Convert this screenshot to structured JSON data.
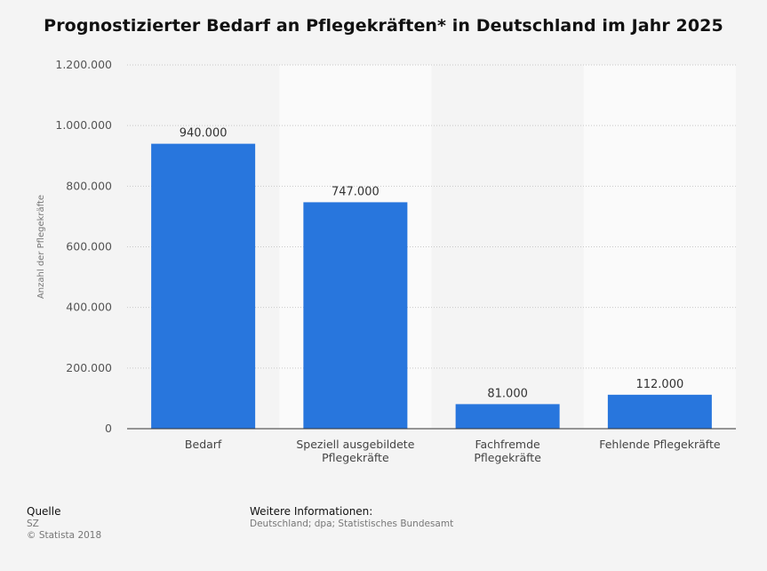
{
  "chart_data": {
    "type": "bar",
    "title": "Prognostizierter Bedarf an Pflegekräften* in Deutschland im Jahr 2025",
    "ylabel": "Anzahl der Pflegekräfte",
    "xlabel": "",
    "categories": [
      [
        "Bedarf"
      ],
      [
        "Speziell ausgebildete",
        "Pflegekräfte"
      ],
      [
        "Fachfremde",
        "Pflegekräfte"
      ],
      [
        "Fehlende Pflegekräfte"
      ]
    ],
    "values": [
      940000,
      747000,
      81000,
      112000
    ],
    "value_labels": [
      "940.000",
      "747.000",
      "81.000",
      "112.000"
    ],
    "yticks": [
      0,
      200000,
      400000,
      600000,
      800000,
      1000000,
      1200000
    ],
    "ytick_labels": [
      "0",
      "200.000",
      "400.000",
      "600.000",
      "800.000",
      "1.000.000",
      "1.200.000"
    ],
    "ylim": [
      0,
      1200000
    ],
    "grid": true,
    "bar_color": "#2876dd"
  },
  "footer": {
    "source_heading": "Quelle",
    "source_text": "SZ",
    "copyright": "© Statista 2018",
    "info_heading": "Weitere Informationen:",
    "info_text": "Deutschland; dpa; Statistisches Bundesamt"
  }
}
